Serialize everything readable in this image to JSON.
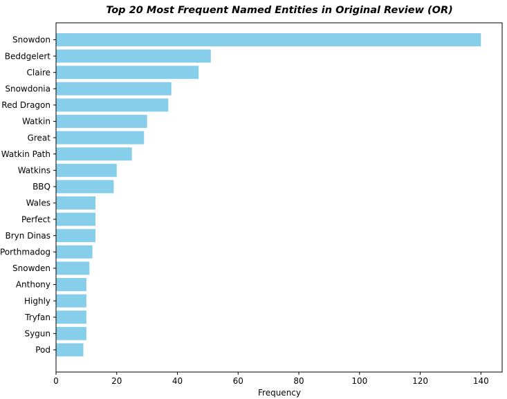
{
  "chart_data": {
    "type": "bar",
    "orientation": "horizontal",
    "title": "Top 20 Most Frequent Named Entities in Original Review (OR)",
    "xlabel": "Frequency",
    "ylabel": "",
    "categories": [
      "Snowdon",
      "Beddgelert",
      "Claire",
      "Snowdonia",
      "Red Dragon",
      "Watkin",
      "Great",
      "Watkin Path",
      "Watkins",
      "BBQ",
      "Wales",
      "Perfect",
      "Bryn Dinas",
      "Porthmadog",
      "Snowden",
      "Anthony",
      "Highly",
      "Tryfan",
      "Sygun",
      "Pod"
    ],
    "values": [
      140,
      51,
      47,
      38,
      37,
      30,
      29,
      25,
      20,
      19,
      13,
      13,
      13,
      12,
      11,
      10,
      10,
      10,
      10,
      9
    ],
    "xlim": [
      0,
      147
    ],
    "xticks": [
      0,
      20,
      40,
      60,
      80,
      100,
      120,
      140
    ],
    "bar_color": "#87ceeb",
    "grid": false,
    "legend": "none"
  }
}
